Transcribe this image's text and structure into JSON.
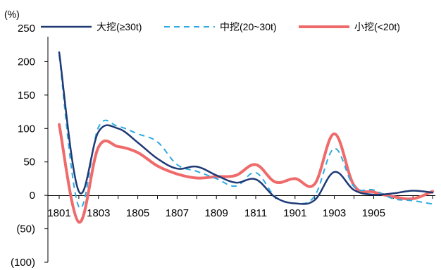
{
  "chart_data": {
    "type": "line",
    "y_unit": "(%)",
    "ylim": [
      -100,
      250
    ],
    "y_ticks": [
      250,
      200,
      150,
      100,
      50,
      0,
      -50,
      -100
    ],
    "y_tick_labels": [
      "250",
      "200",
      "150",
      "100",
      "50",
      "0",
      "(50)",
      "(100)"
    ],
    "x_tick_labels": [
      "1801",
      "1803",
      "1805",
      "1807",
      "1809",
      "1811",
      "1901",
      "1903",
      "1905"
    ],
    "legend_position": "top",
    "grid": false,
    "series": [
      {
        "name": "大挖(≥30t)",
        "color": "#1f3a75",
        "dash": "solid",
        "values": [
          214,
          6,
          95,
          100,
          79,
          55,
          40,
          43,
          30,
          19,
          24,
          -3,
          -12,
          -7,
          35,
          8,
          1,
          3,
          7,
          4
        ]
      },
      {
        "name": "中挖(20~30t)",
        "color": "#2eaae3",
        "dash": "dashed",
        "values": [
          210,
          -17,
          102,
          103,
          92,
          80,
          46,
          36,
          25,
          14,
          34,
          -2,
          -12,
          -1,
          70,
          13,
          8,
          -5,
          -8,
          -13
        ]
      },
      {
        "name": "小挖(<20t)",
        "color": "#ef6b6b",
        "dash": "solid",
        "values": [
          106,
          -40,
          72,
          73,
          64,
          44,
          32,
          26,
          28,
          30,
          46,
          20,
          25,
          17,
          92,
          15,
          5,
          -2,
          -5,
          6
        ]
      }
    ]
  }
}
